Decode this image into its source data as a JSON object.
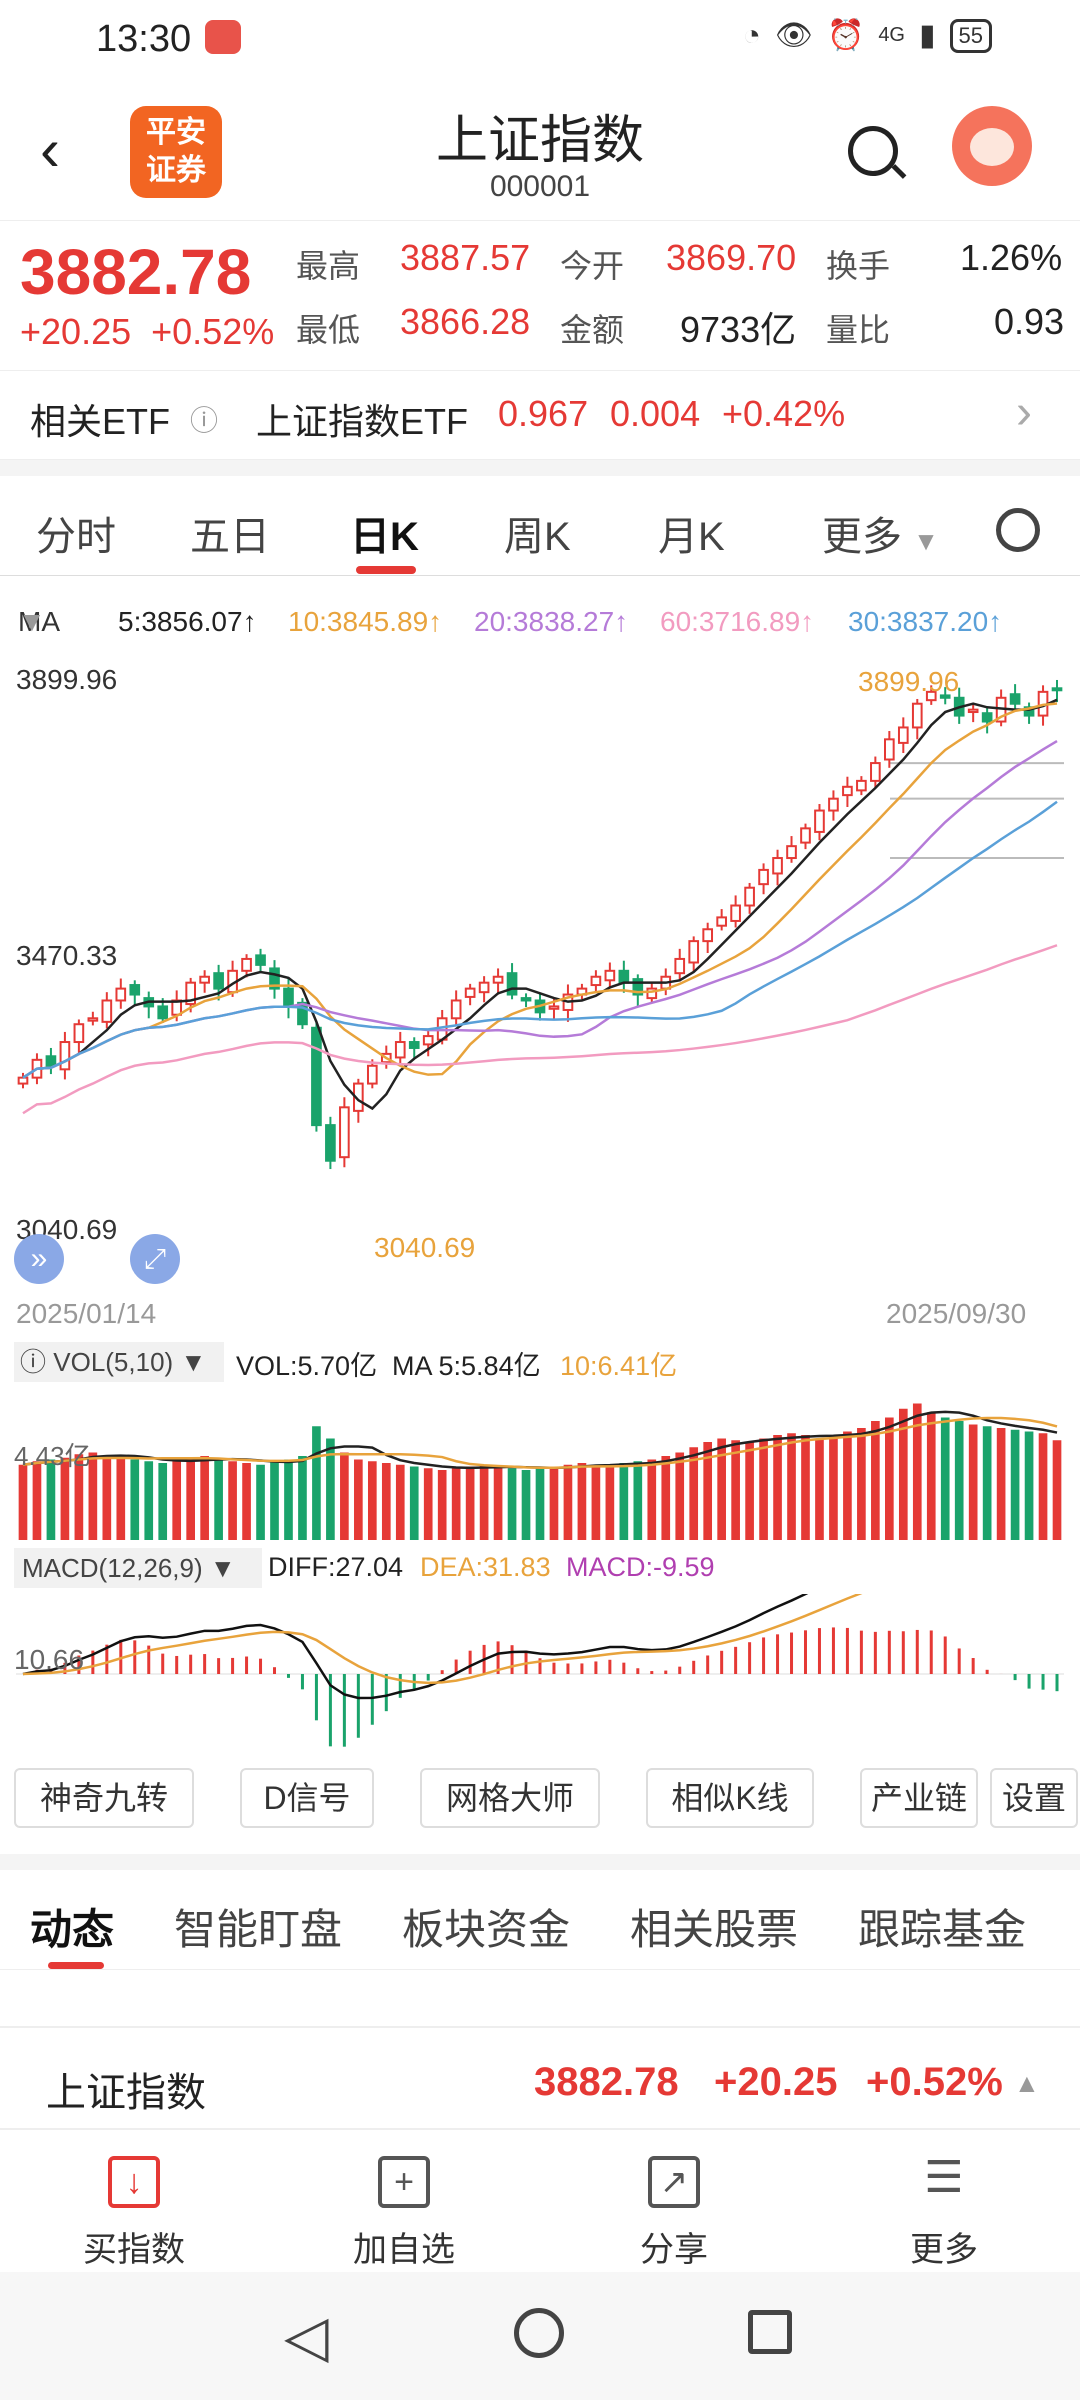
{
  "status": {
    "time": "13:30",
    "network": "4G",
    "battery": "55"
  },
  "header": {
    "logo_line1": "平安",
    "logo_line2": "证券",
    "title": "上证指数",
    "code": "000001"
  },
  "quote": {
    "price": "3882.78",
    "change": "+20.25",
    "change_pct": "+0.52%",
    "high_label": "最高",
    "high": "3887.57",
    "low_label": "最低",
    "low": "3866.28",
    "open_label": "今开",
    "open": "3869.70",
    "amount_label": "金额",
    "amount": "9733亿",
    "turnover_label": "换手",
    "turnover": "1.26%",
    "volratio_label": "量比",
    "volratio": "0.93"
  },
  "etf": {
    "label": "相关ETF",
    "info": "ⓘ",
    "name": "上证指数ETF",
    "price": "0.967",
    "change": "0.004",
    "pct": "+0.42%"
  },
  "tabs": [
    "分时",
    "五日",
    "日K",
    "周K",
    "月K",
    "更多"
  ],
  "ma": {
    "label": "MA",
    "ma5": "5:3856.07↑",
    "ma10": "10:3845.89↑",
    "ma20": "20:3838.27↑",
    "ma60": "60:3716.89↑",
    "ma30": "30:3837.20↑"
  },
  "chart_labels": {
    "top": "3899.96",
    "mid": "3470.33",
    "low": "3040.69",
    "high_mark": "3899.96",
    "low_mark": "3040.69",
    "start_date": "2025/01/14",
    "end_date": "2025/09/30"
  },
  "vol": {
    "label": "VOL(5,10)",
    "vol": "VOL:5.70亿",
    "ma5": "MA 5:5.84亿",
    "ma10": "10:6.41亿",
    "axis": "4.43亿"
  },
  "macd": {
    "label": "MACD(12,26,9)",
    "diff": "DIFF:27.04",
    "dea": "DEA:31.83",
    "macd": "MACD:-9.59",
    "axis": "10.66"
  },
  "tools": [
    "神奇九转",
    "D信号",
    "网格大师",
    "相似K线",
    "产业链",
    "设置"
  ],
  "subtabs": [
    "动态",
    "智能盯盘",
    "板块资金",
    "相关股票",
    "跟踪基金"
  ],
  "summary": {
    "name": "上证指数",
    "price": "3882.78",
    "change": "+20.25",
    "pct": "+0.52%"
  },
  "nav": [
    {
      "label": "买指数",
      "icon": "download-icon"
    },
    {
      "label": "加自选",
      "icon": "plus-icon"
    },
    {
      "label": "分享",
      "icon": "share-icon"
    },
    {
      "label": "更多",
      "icon": "menu-icon"
    }
  ],
  "colors": {
    "up": "#e53935",
    "down": "#1aa36b",
    "ma5": "#222222",
    "ma10": "#e8a33c",
    "ma20": "#b57bd8",
    "ma60": "#f29bc0",
    "ma30": "#5aa0d8"
  },
  "chart_data": {
    "type": "candlestick",
    "x_range": [
      "2025/01/14",
      "2025/09/30"
    ],
    "ylim": [
      3040.69,
      3899.96
    ],
    "ticks": [
      3899.96,
      3470.33,
      3040.69
    ],
    "close": [
      3230,
      3260,
      3250,
      3290,
      3320,
      3330,
      3360,
      3380,
      3370,
      3350,
      3330,
      3360,
      3390,
      3400,
      3380,
      3410,
      3430,
      3420,
      3380,
      3350,
      3320,
      3150,
      3090,
      3180,
      3220,
      3250,
      3270,
      3290,
      3280,
      3300,
      3330,
      3360,
      3380,
      3390,
      3400,
      3370,
      3360,
      3340,
      3350,
      3370,
      3380,
      3400,
      3410,
      3390,
      3370,
      3380,
      3400,
      3430,
      3460,
      3480,
      3500,
      3520,
      3550,
      3580,
      3600,
      3620,
      3650,
      3680,
      3700,
      3720,
      3730,
      3760,
      3800,
      3820,
      3860,
      3880,
      3870,
      3840,
      3850,
      3830,
      3870,
      3860,
      3840,
      3880,
      3882.78
    ],
    "volume_yi": [
      4.3,
      4.5,
      4.6,
      4.7,
      4.9,
      5.0,
      4.8,
      4.7,
      4.6,
      4.5,
      4.4,
      4.5,
      4.6,
      4.8,
      4.7,
      4.5,
      4.4,
      4.3,
      4.5,
      4.6,
      4.8,
      6.5,
      5.8,
      5.0,
      4.6,
      4.5,
      4.4,
      4.3,
      4.2,
      4.1,
      4.0,
      4.1,
      4.2,
      4.3,
      4.2,
      4.1,
      4.0,
      4.1,
      4.2,
      4.3,
      4.4,
      4.3,
      4.2,
      4.4,
      4.5,
      4.6,
      4.8,
      5.0,
      5.3,
      5.6,
      5.8,
      5.7,
      5.6,
      5.8,
      6.0,
      6.1,
      6.0,
      5.8,
      5.9,
      6.2,
      6.4,
      6.8,
      7.0,
      7.5,
      7.8,
      7.3,
      7.0,
      6.8,
      6.6,
      6.5,
      6.4,
      6.3,
      6.2,
      6.1,
      5.7
    ]
  }
}
